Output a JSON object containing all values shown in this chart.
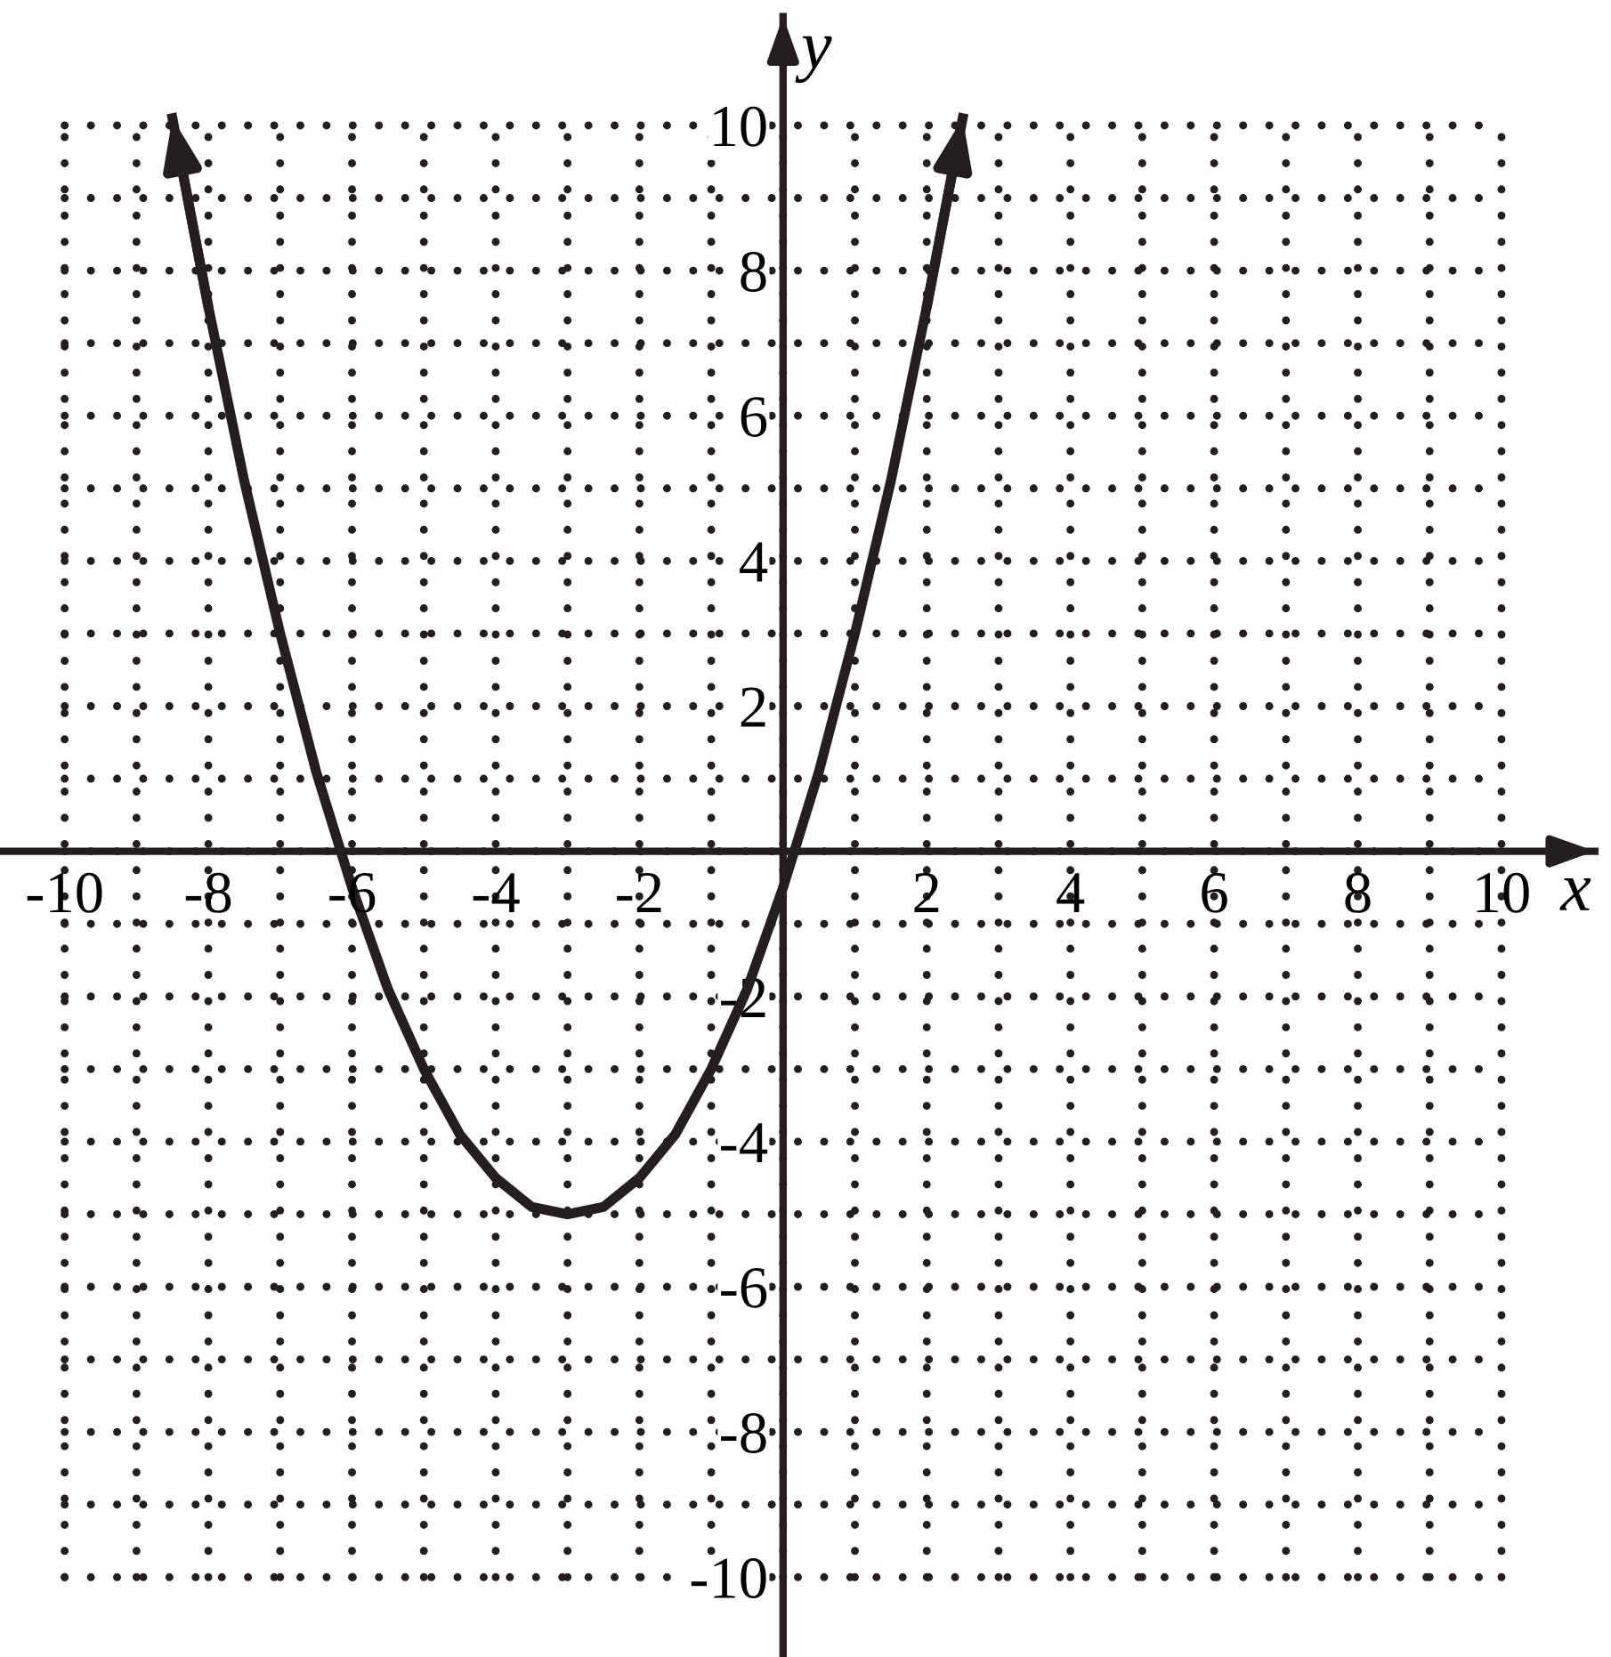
{
  "chart_data": {
    "type": "line",
    "xlabel": "x",
    "ylabel": "y",
    "x": [
      -8.5,
      -8,
      -7.5,
      -7,
      -6.5,
      -6,
      -5.5,
      -5,
      -4.5,
      -4,
      -3.5,
      -3,
      -2.5,
      -2,
      -1.5,
      -1,
      -0.5,
      0,
      0.5,
      1,
      1.5,
      2,
      2.5
    ],
    "series": [
      {
        "color": "#231f20",
        "values": [
          10.1,
          7.5,
          5.1,
          3,
          1.1,
          -0.5,
          -1.9,
          -3,
          -3.9,
          -4.5,
          -4.9,
          -5,
          -4.9,
          -4.5,
          -3.9,
          -3,
          -1.9,
          -0.5,
          1.1,
          3,
          5.1,
          7.5,
          10.1
        ]
      }
    ],
    "xlim": [
      -10.9,
      11.3
    ],
    "ylim": [
      -11.1,
      11.5
    ],
    "xticks": [
      -10,
      -8,
      -6,
      -4,
      -2,
      2,
      4,
      6,
      8,
      10
    ],
    "yticks": [
      -10,
      -8,
      -6,
      -4,
      -2,
      2,
      4,
      6,
      8,
      10
    ],
    "grid": true,
    "marker": "none",
    "line_style": "solid"
  }
}
